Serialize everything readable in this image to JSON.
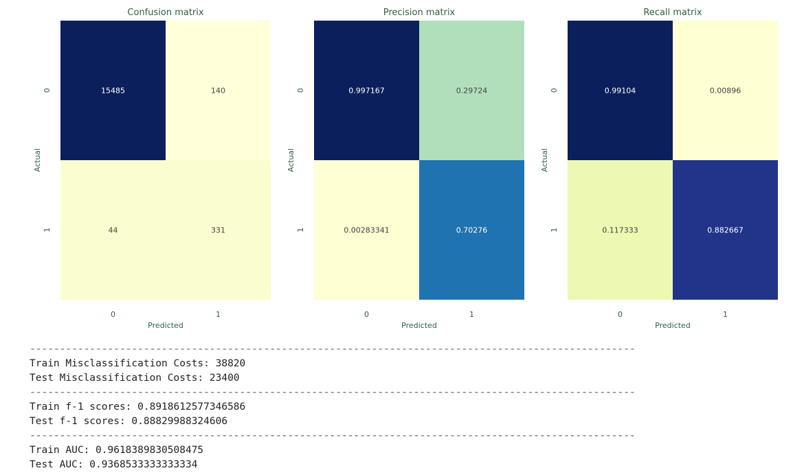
{
  "chart_data": [
    {
      "type": "heatmap",
      "title": "Confusion matrix",
      "xlabel": "Predicted",
      "ylabel": "Actual",
      "x_categories": [
        "0",
        "1"
      ],
      "y_categories": [
        "0",
        "1"
      ],
      "values": [
        [
          15485,
          140
        ],
        [
          44,
          331
        ]
      ],
      "cell_labels": [
        [
          "15485",
          "140"
        ],
        [
          "44",
          "331"
        ]
      ],
      "colors": [
        [
          "#0b1f5c",
          "#ffffd9"
        ],
        [
          "#fafecf",
          "#fafecf"
        ]
      ],
      "text_colors": [
        [
          "#ffffff",
          "#444444"
        ],
        [
          "#444444",
          "#444444"
        ]
      ],
      "colormap": "YlGnBu"
    },
    {
      "type": "heatmap",
      "title": "Precision matrix",
      "xlabel": "Predicted",
      "ylabel": "Actual",
      "x_categories": [
        "0",
        "1"
      ],
      "y_categories": [
        "0",
        "1"
      ],
      "values": [
        [
          0.997167,
          0.29724
        ],
        [
          0.00283341,
          0.70276
        ]
      ],
      "cell_labels": [
        [
          "0.997167",
          "0.29724"
        ],
        [
          "0.00283341",
          "0.70276"
        ]
      ],
      "colors": [
        [
          "#0b1f5c",
          "#b1dfbb"
        ],
        [
          "#fdfed2",
          "#1f73b0"
        ]
      ],
      "text_colors": [
        [
          "#ffffff",
          "#444444"
        ],
        [
          "#444444",
          "#ffffff"
        ]
      ],
      "colormap": "YlGnBu"
    },
    {
      "type": "heatmap",
      "title": "Recall matrix",
      "xlabel": "Predicted",
      "ylabel": "Actual",
      "x_categories": [
        "0",
        "1"
      ],
      "y_categories": [
        "0",
        "1"
      ],
      "values": [
        [
          0.99104,
          0.00896
        ],
        [
          0.117333,
          0.882667
        ]
      ],
      "cell_labels": [
        [
          "0.99104",
          "0.00896"
        ],
        [
          "0.117333",
          "0.882667"
        ]
      ],
      "colors": [
        [
          "#0b1f5c",
          "#ffffd4"
        ],
        [
          "#edf8b3",
          "#213489"
        ]
      ],
      "text_colors": [
        [
          "#ffffff",
          "#444444"
        ],
        [
          "#444444",
          "#ffffff"
        ]
      ],
      "colormap": "YlGnBu"
    }
  ],
  "report": {
    "separator": "-----------------------------------------------------------------------------------------------------",
    "train_cost": "Train Misclassification Costs: 38820",
    "test_cost": "Test Misclassification Costs: 23400",
    "train_f1": "Train f-1 scores: 0.8918612577346586",
    "test_f1": "Test f-1 scores: 0.88829988324606",
    "train_auc": "Train AUC: 0.9618389830508475",
    "test_auc": "Test AUC: 0.9368533333333334"
  }
}
